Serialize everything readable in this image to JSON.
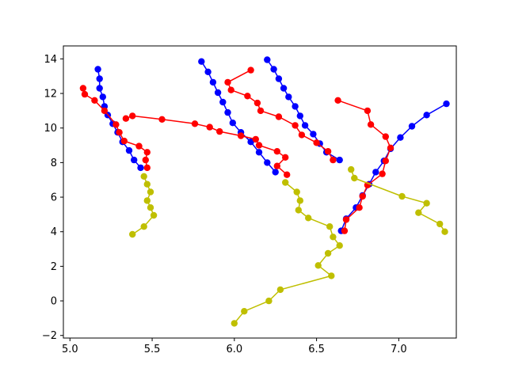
{
  "chart_data": {
    "type": "line",
    "title": "",
    "xlabel": "",
    "ylabel": "",
    "xlim": [
      4.96,
      7.35
    ],
    "ylim": [
      -2.15,
      14.75
    ],
    "xticks": [
      5.0,
      5.5,
      6.0,
      6.5,
      7.0
    ],
    "yticks": [
      -2,
      0,
      2,
      4,
      6,
      8,
      10,
      12,
      14
    ],
    "grid": false,
    "legend": "none",
    "marker": "circle",
    "series": [
      {
        "color": "#0000ff",
        "points": [
          [
            5.17,
            13.4
          ],
          [
            5.18,
            12.85
          ],
          [
            5.18,
            12.3
          ],
          [
            5.2,
            11.8
          ],
          [
            5.21,
            11.25
          ],
          [
            5.23,
            10.75
          ],
          [
            5.26,
            10.25
          ],
          [
            5.29,
            9.75
          ],
          [
            5.32,
            9.2
          ],
          [
            5.36,
            8.7
          ],
          [
            5.39,
            8.15
          ],
          [
            5.43,
            7.7
          ]
        ]
      },
      {
        "color": "#0000ff",
        "points": [
          [
            5.8,
            13.85
          ],
          [
            5.84,
            13.25
          ],
          [
            5.87,
            12.65
          ],
          [
            5.9,
            12.05
          ],
          [
            5.93,
            11.5
          ],
          [
            5.96,
            10.9
          ],
          [
            5.99,
            10.3
          ],
          [
            6.04,
            9.75
          ],
          [
            6.1,
            9.2
          ],
          [
            6.15,
            8.6
          ],
          [
            6.2,
            8.0
          ],
          [
            6.25,
            7.45
          ]
        ]
      },
      {
        "color": "#0000ff",
        "points": [
          [
            6.2,
            13.95
          ],
          [
            6.24,
            13.4
          ],
          [
            6.27,
            12.85
          ],
          [
            6.3,
            12.3
          ],
          [
            6.33,
            11.8
          ],
          [
            6.37,
            11.25
          ],
          [
            6.4,
            10.7
          ],
          [
            6.43,
            10.15
          ],
          [
            6.48,
            9.65
          ],
          [
            6.52,
            9.1
          ],
          [
            6.56,
            8.6
          ],
          [
            6.64,
            8.15
          ]
        ]
      },
      {
        "color": "#0000ff",
        "points": [
          [
            6.65,
            4.05
          ],
          [
            6.68,
            4.75
          ],
          [
            6.74,
            5.4
          ],
          [
            6.78,
            6.1
          ],
          [
            6.82,
            6.75
          ],
          [
            6.86,
            7.45
          ],
          [
            6.91,
            8.1
          ],
          [
            6.95,
            8.8
          ],
          [
            7.01,
            9.45
          ],
          [
            7.08,
            10.1
          ],
          [
            7.17,
            10.75
          ],
          [
            7.29,
            11.4
          ]
        ]
      },
      {
        "color": "#ff0000",
        "points": [
          [
            5.08,
            12.3
          ],
          [
            5.09,
            11.95
          ],
          [
            5.15,
            11.6
          ],
          [
            5.21,
            11.0
          ],
          [
            5.28,
            10.2
          ],
          [
            5.3,
            9.75
          ],
          [
            5.33,
            9.25
          ],
          [
            5.42,
            8.95
          ],
          [
            5.47,
            8.6
          ],
          [
            5.46,
            8.15
          ],
          [
            5.47,
            7.7
          ]
        ]
      },
      {
        "color": "#ff0000",
        "points": [
          [
            5.34,
            10.55
          ],
          [
            5.38,
            10.7
          ],
          [
            5.56,
            10.5
          ],
          [
            5.76,
            10.25
          ],
          [
            5.85,
            10.05
          ],
          [
            5.91,
            9.8
          ],
          [
            6.04,
            9.55
          ],
          [
            6.13,
            9.35
          ],
          [
            6.15,
            9.0
          ],
          [
            6.26,
            8.65
          ],
          [
            6.31,
            8.3
          ],
          [
            6.26,
            7.8
          ],
          [
            6.32,
            7.3
          ]
        ]
      },
      {
        "color": "#ff0000",
        "points": [
          [
            6.1,
            13.35
          ],
          [
            5.96,
            12.65
          ],
          [
            5.98,
            12.2
          ],
          [
            6.08,
            11.85
          ],
          [
            6.14,
            11.45
          ],
          [
            6.16,
            11.0
          ],
          [
            6.27,
            10.65
          ],
          [
            6.37,
            10.15
          ],
          [
            6.41,
            9.6
          ],
          [
            6.5,
            9.15
          ],
          [
            6.57,
            8.65
          ],
          [
            6.6,
            8.15
          ]
        ]
      },
      {
        "color": "#ff0000",
        "points": [
          [
            6.63,
            11.6
          ],
          [
            6.81,
            11.0
          ],
          [
            6.83,
            10.2
          ],
          [
            6.92,
            9.5
          ],
          [
            6.95,
            8.85
          ],
          [
            6.92,
            8.1
          ],
          [
            6.9,
            7.35
          ],
          [
            6.81,
            6.7
          ],
          [
            6.78,
            6.05
          ],
          [
            6.76,
            5.4
          ],
          [
            6.68,
            4.7
          ],
          [
            6.67,
            4.05
          ]
        ]
      },
      {
        "color": "#bfbf00",
        "points": [
          [
            5.38,
            3.85
          ],
          [
            5.45,
            4.3
          ],
          [
            5.51,
            4.95
          ],
          [
            5.49,
            5.4
          ],
          [
            5.47,
            5.8
          ],
          [
            5.49,
            6.3
          ],
          [
            5.47,
            6.75
          ],
          [
            5.45,
            7.2
          ]
        ]
      },
      {
        "color": "#bfbf00",
        "points": [
          [
            6.0,
            -1.3
          ],
          [
            6.06,
            -0.6
          ],
          [
            6.21,
            0.0
          ],
          [
            6.28,
            0.65
          ],
          [
            6.59,
            1.45
          ],
          [
            6.51,
            2.05
          ],
          [
            6.57,
            2.75
          ],
          [
            6.64,
            3.2
          ],
          [
            6.6,
            3.7
          ],
          [
            6.58,
            4.3
          ],
          [
            6.45,
            4.8
          ],
          [
            6.39,
            5.25
          ],
          [
            6.4,
            5.8
          ],
          [
            6.38,
            6.3
          ],
          [
            6.31,
            6.85
          ]
        ]
      },
      {
        "color": "#bfbf00",
        "points": [
          [
            6.71,
            7.6
          ],
          [
            6.73,
            7.1
          ],
          [
            7.02,
            6.05
          ],
          [
            7.17,
            5.65
          ],
          [
            7.12,
            5.1
          ],
          [
            7.25,
            4.45
          ],
          [
            7.28,
            4.0
          ]
        ]
      }
    ]
  }
}
